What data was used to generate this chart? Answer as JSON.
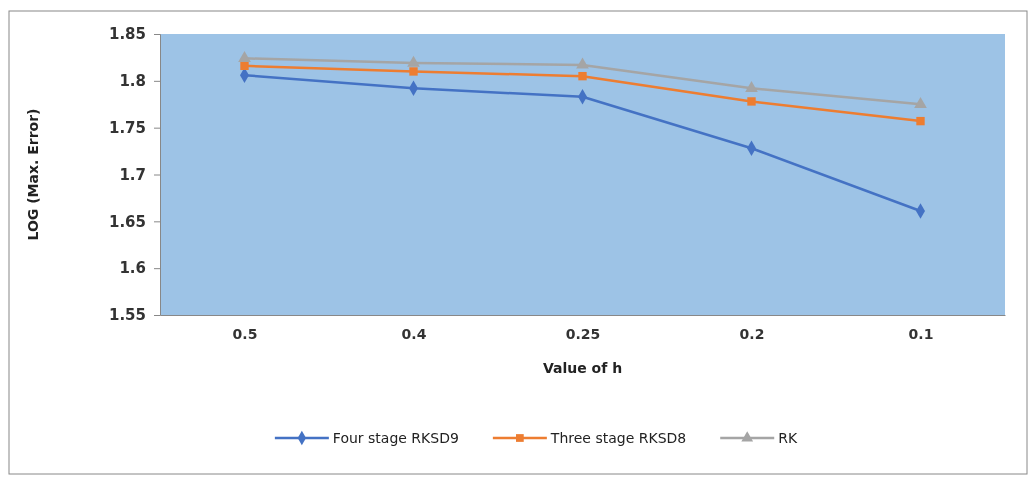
{
  "chart_data": {
    "type": "line",
    "xlabel": "Value of h",
    "ylabel": "LOG  (Max. Error)",
    "categories": [
      "0.5",
      "0.4",
      "0.25",
      "0.2",
      "0.1"
    ],
    "series": [
      {
        "name": "Four stage RKSD9",
        "color": "#4472c4",
        "marker": "diamond",
        "values": [
          1.806,
          1.792,
          1.783,
          1.728,
          1.661
        ]
      },
      {
        "name": "Three stage RKSD8",
        "color": "#ed7d31",
        "marker": "square",
        "values": [
          1.816,
          1.81,
          1.805,
          1.778,
          1.757
        ]
      },
      {
        "name": "RK",
        "color": "#a5a5a5",
        "marker": "triangle",
        "values": [
          1.824,
          1.819,
          1.817,
          1.792,
          1.775
        ]
      }
    ],
    "ylim": [
      1.55,
      1.85
    ],
    "yticks": [
      1.55,
      1.6,
      1.65,
      1.7,
      1.75,
      1.8,
      1.85
    ],
    "grid": false,
    "legend": "bottom"
  }
}
